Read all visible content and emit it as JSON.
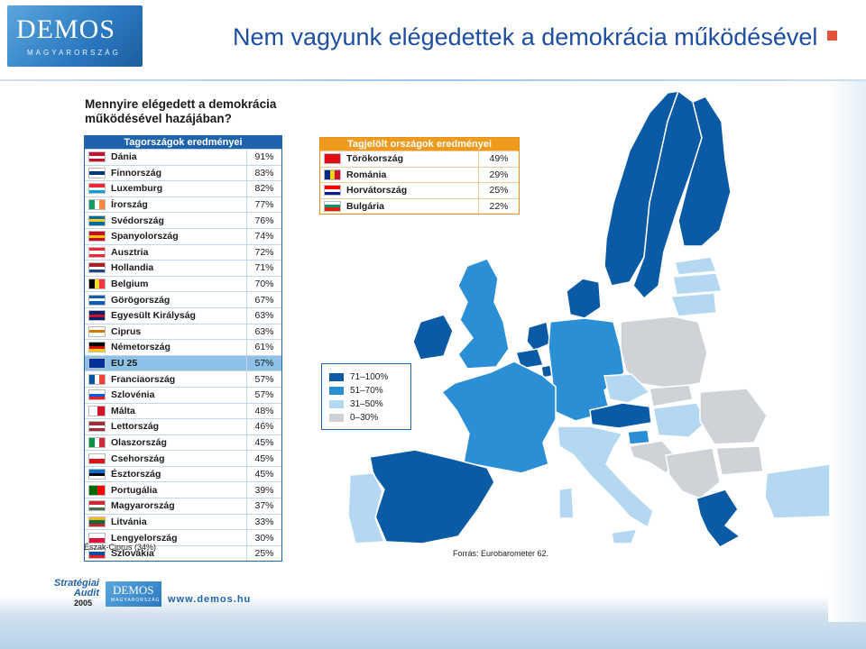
{
  "header": {
    "logo_text": "DEMOS",
    "logo_subtext": "MAGYARORSZÁG",
    "title": "Nem vagyunk elégedettek a demokrácia működésével"
  },
  "chart_data": [
    {
      "type": "table",
      "title": "Mennyire elégedett a demokrácia működésével hazájában?",
      "header": "Tagországok eredményei",
      "rows": [
        {
          "country": "Dánia",
          "value": "91%",
          "flag": [
            "#c8102e",
            "#ffffff",
            "#c8102e"
          ]
        },
        {
          "country": "Finnország",
          "value": "83%",
          "flag": [
            "#ffffff",
            "#003580",
            "#ffffff"
          ]
        },
        {
          "country": "Luxemburg",
          "value": "82%",
          "flag": [
            "#ed2939",
            "#ffffff",
            "#00a1de"
          ]
        },
        {
          "country": "Írország",
          "value": "77%",
          "flag": [
            "#169b62",
            "#ffffff",
            "#ff883e"
          ],
          "vertical": true
        },
        {
          "country": "Svédország",
          "value": "76%",
          "flag": [
            "#006aa7",
            "#fecc00",
            "#006aa7"
          ]
        },
        {
          "country": "Spanyolország",
          "value": "74%",
          "flag": [
            "#c60b1e",
            "#ffc400",
            "#c60b1e"
          ]
        },
        {
          "country": "Ausztria",
          "value": "72%",
          "flag": [
            "#ed2939",
            "#ffffff",
            "#ed2939"
          ]
        },
        {
          "country": "Hollandia",
          "value": "71%",
          "flag": [
            "#ae1c28",
            "#ffffff",
            "#21468b"
          ]
        },
        {
          "country": "Belgium",
          "value": "70%",
          "flag": [
            "#000000",
            "#fdda24",
            "#ef3340"
          ],
          "vertical": true
        },
        {
          "country": "Görögország",
          "value": "67%",
          "flag": [
            "#0d5eaf",
            "#ffffff",
            "#0d5eaf"
          ]
        },
        {
          "country": "Egyesült Királyság",
          "value": "63%",
          "flag": [
            "#012169",
            "#c8102e",
            "#012169"
          ]
        },
        {
          "country": "Ciprus",
          "value": "63%",
          "flag": [
            "#ffffff",
            "#d57800",
            "#ffffff"
          ]
        },
        {
          "country": "Németország",
          "value": "61%",
          "flag": [
            "#000000",
            "#dd0000",
            "#ffce00"
          ]
        },
        {
          "country": "EU 25",
          "value": "57%",
          "flag": [
            "#003399",
            "#003399",
            "#003399"
          ],
          "highlight": true
        },
        {
          "country": "Franciaország",
          "value": "57%",
          "flag": [
            "#0055a4",
            "#ffffff",
            "#ef4135"
          ],
          "vertical": true
        },
        {
          "country": "Szlovénia",
          "value": "57%",
          "flag": [
            "#ffffff",
            "#005ce5",
            "#ed1c24"
          ]
        },
        {
          "country": "Málta",
          "value": "48%",
          "flag": [
            "#ffffff",
            "#cf142b"
          ],
          "vertical": true
        },
        {
          "country": "Lettország",
          "value": "46%",
          "flag": [
            "#9e3039",
            "#ffffff",
            "#9e3039"
          ]
        },
        {
          "country": "Olaszország",
          "value": "45%",
          "flag": [
            "#009246",
            "#ffffff",
            "#ce2b37"
          ],
          "vertical": true
        },
        {
          "country": "Csehország",
          "value": "45%",
          "flag": [
            "#ffffff",
            "#d7141a"
          ]
        },
        {
          "country": "Észtország",
          "value": "45%",
          "flag": [
            "#0072ce",
            "#000000",
            "#ffffff"
          ]
        },
        {
          "country": "Portugália",
          "value": "39%",
          "flag": [
            "#006600",
            "#ff0000"
          ],
          "vertical": true
        },
        {
          "country": "Magyarország",
          "value": "37%",
          "flag": [
            "#ce2939",
            "#ffffff",
            "#477050"
          ]
        },
        {
          "country": "Litvánia",
          "value": "33%",
          "flag": [
            "#fdb913",
            "#006a44",
            "#c1272d"
          ]
        },
        {
          "country": "Lengyelország",
          "value": "30%",
          "flag": [
            "#ffffff",
            "#dc143c"
          ]
        },
        {
          "country": "Szlovákia",
          "value": "25%",
          "flag": [
            "#ffffff",
            "#0b4ea2",
            "#ee1c25"
          ]
        }
      ],
      "note": "Észak-Ciprus (34%)"
    },
    {
      "type": "table",
      "header": "Tagjelölt országok eredményei",
      "rows": [
        {
          "country": "Törökország",
          "value": "49%",
          "flag": [
            "#e30a17",
            "#e30a17",
            "#e30a17"
          ]
        },
        {
          "country": "Románia",
          "value": "29%",
          "flag": [
            "#002b7f",
            "#fcd116",
            "#ce1126"
          ],
          "vertical": true
        },
        {
          "country": "Horvátország",
          "value": "25%",
          "flag": [
            "#ff0000",
            "#ffffff",
            "#171796"
          ]
        },
        {
          "country": "Bulgária",
          "value": "22%",
          "flag": [
            "#ffffff",
            "#00966e",
            "#d62612"
          ]
        }
      ]
    },
    {
      "type": "map",
      "legend": [
        {
          "label": "71–100%",
          "color": "#0b5aa6"
        },
        {
          "label": "51–70%",
          "color": "#2b8fd6"
        },
        {
          "label": "31–50%",
          "color": "#b5d8f2"
        },
        {
          "label": "0–30%",
          "color": "#cfd2d6"
        }
      ],
      "source": "Forrás: Eurobarometer 62."
    }
  ],
  "footer": {
    "strategiai": "Stratégiai",
    "audit": "Audit",
    "year": "2005",
    "demos": "DEMOS",
    "demos_sub": "MAGYARORSZÁG",
    "url": "www.demos.hu"
  }
}
